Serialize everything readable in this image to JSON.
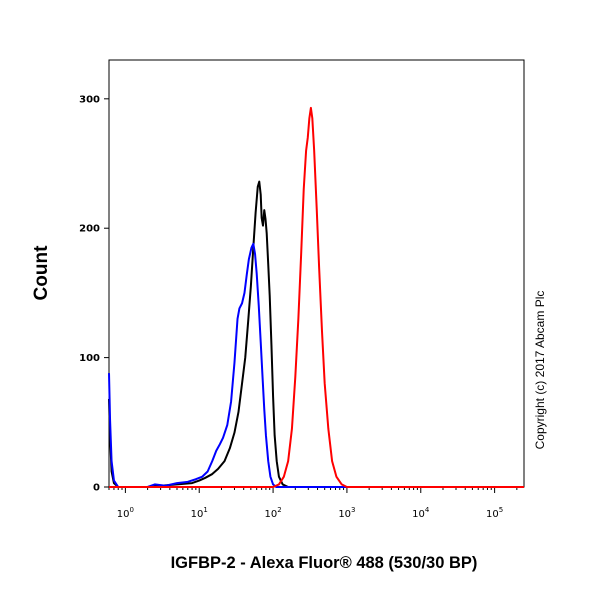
{
  "chart_data": {
    "type": "line",
    "xlabel": "IGFBP-2 - Alexa Fluor® 488 (530/30 BP)",
    "ylabel": "Count",
    "x_scale": "log",
    "xlim": [
      0.6,
      250000
    ],
    "ylim": [
      0,
      330
    ],
    "y_ticks": [
      0,
      100,
      200,
      300
    ],
    "x_ticks": [
      {
        "value": 1,
        "base": "10",
        "exp": "0"
      },
      {
        "value": 10,
        "base": "10",
        "exp": "1"
      },
      {
        "value": 100,
        "base": "10",
        "exp": "2"
      },
      {
        "value": 1000,
        "base": "10",
        "exp": "3"
      },
      {
        "value": 10000,
        "base": "10",
        "exp": "4"
      },
      {
        "value": 100000,
        "base": "10",
        "exp": "5"
      }
    ],
    "grid": false,
    "annotation": "Copyright (c) 2017 Abcam Plc",
    "series": [
      {
        "color": "#000000",
        "points": [
          [
            0.6,
            68
          ],
          [
            0.62,
            40
          ],
          [
            0.65,
            12
          ],
          [
            0.7,
            3
          ],
          [
            0.8,
            0
          ],
          [
            2,
            0
          ],
          [
            3,
            1
          ],
          [
            5,
            2
          ],
          [
            8,
            3
          ],
          [
            10,
            5
          ],
          [
            12,
            7
          ],
          [
            15,
            10
          ],
          [
            18,
            14
          ],
          [
            22,
            20
          ],
          [
            26,
            30
          ],
          [
            30,
            42
          ],
          [
            34,
            58
          ],
          [
            38,
            80
          ],
          [
            42,
            100
          ],
          [
            46,
            128
          ],
          [
            50,
            155
          ],
          [
            54,
            185
          ],
          [
            58,
            212
          ],
          [
            62,
            232
          ],
          [
            65,
            236
          ],
          [
            68,
            226
          ],
          [
            70,
            208
          ],
          [
            73,
            202
          ],
          [
            76,
            214
          ],
          [
            79,
            207
          ],
          [
            82,
            196
          ],
          [
            86,
            172
          ],
          [
            90,
            148
          ],
          [
            95,
            110
          ],
          [
            100,
            70
          ],
          [
            105,
            40
          ],
          [
            112,
            20
          ],
          [
            120,
            8
          ],
          [
            135,
            2
          ],
          [
            160,
            0
          ],
          [
            250000,
            0
          ]
        ]
      },
      {
        "color": "#0000ff",
        "points": [
          [
            0.6,
            88
          ],
          [
            0.62,
            52
          ],
          [
            0.65,
            20
          ],
          [
            0.7,
            5
          ],
          [
            0.8,
            0
          ],
          [
            2,
            0
          ],
          [
            2.5,
            2
          ],
          [
            3.5,
            1
          ],
          [
            5,
            3
          ],
          [
            7,
            4
          ],
          [
            9,
            6
          ],
          [
            11,
            8
          ],
          [
            13,
            12
          ],
          [
            15,
            20
          ],
          [
            17,
            28
          ],
          [
            19,
            33
          ],
          [
            21,
            38
          ],
          [
            24,
            48
          ],
          [
            27,
            66
          ],
          [
            30,
            96
          ],
          [
            33,
            130
          ],
          [
            35,
            138
          ],
          [
            38,
            142
          ],
          [
            41,
            150
          ],
          [
            44,
            164
          ],
          [
            47,
            176
          ],
          [
            51,
            185
          ],
          [
            54,
            188
          ],
          [
            57,
            180
          ],
          [
            60,
            165
          ],
          [
            64,
            140
          ],
          [
            68,
            112
          ],
          [
            72,
            85
          ],
          [
            76,
            60
          ],
          [
            80,
            40
          ],
          [
            86,
            20
          ],
          [
            92,
            8
          ],
          [
            100,
            2
          ],
          [
            110,
            0
          ],
          [
            250000,
            0
          ]
        ]
      },
      {
        "color": "#ff0000",
        "points": [
          [
            0.6,
            0
          ],
          [
            100,
            0
          ],
          [
            120,
            2
          ],
          [
            140,
            8
          ],
          [
            160,
            20
          ],
          [
            180,
            45
          ],
          [
            200,
            85
          ],
          [
            220,
            130
          ],
          [
            240,
            180
          ],
          [
            260,
            230
          ],
          [
            280,
            260
          ],
          [
            295,
            270
          ],
          [
            310,
            285
          ],
          [
            325,
            293
          ],
          [
            340,
            285
          ],
          [
            360,
            260
          ],
          [
            390,
            215
          ],
          [
            420,
            170
          ],
          [
            460,
            120
          ],
          [
            500,
            80
          ],
          [
            560,
            45
          ],
          [
            630,
            20
          ],
          [
            720,
            8
          ],
          [
            850,
            2
          ],
          [
            1000,
            0
          ],
          [
            250000,
            0
          ]
        ]
      }
    ]
  }
}
